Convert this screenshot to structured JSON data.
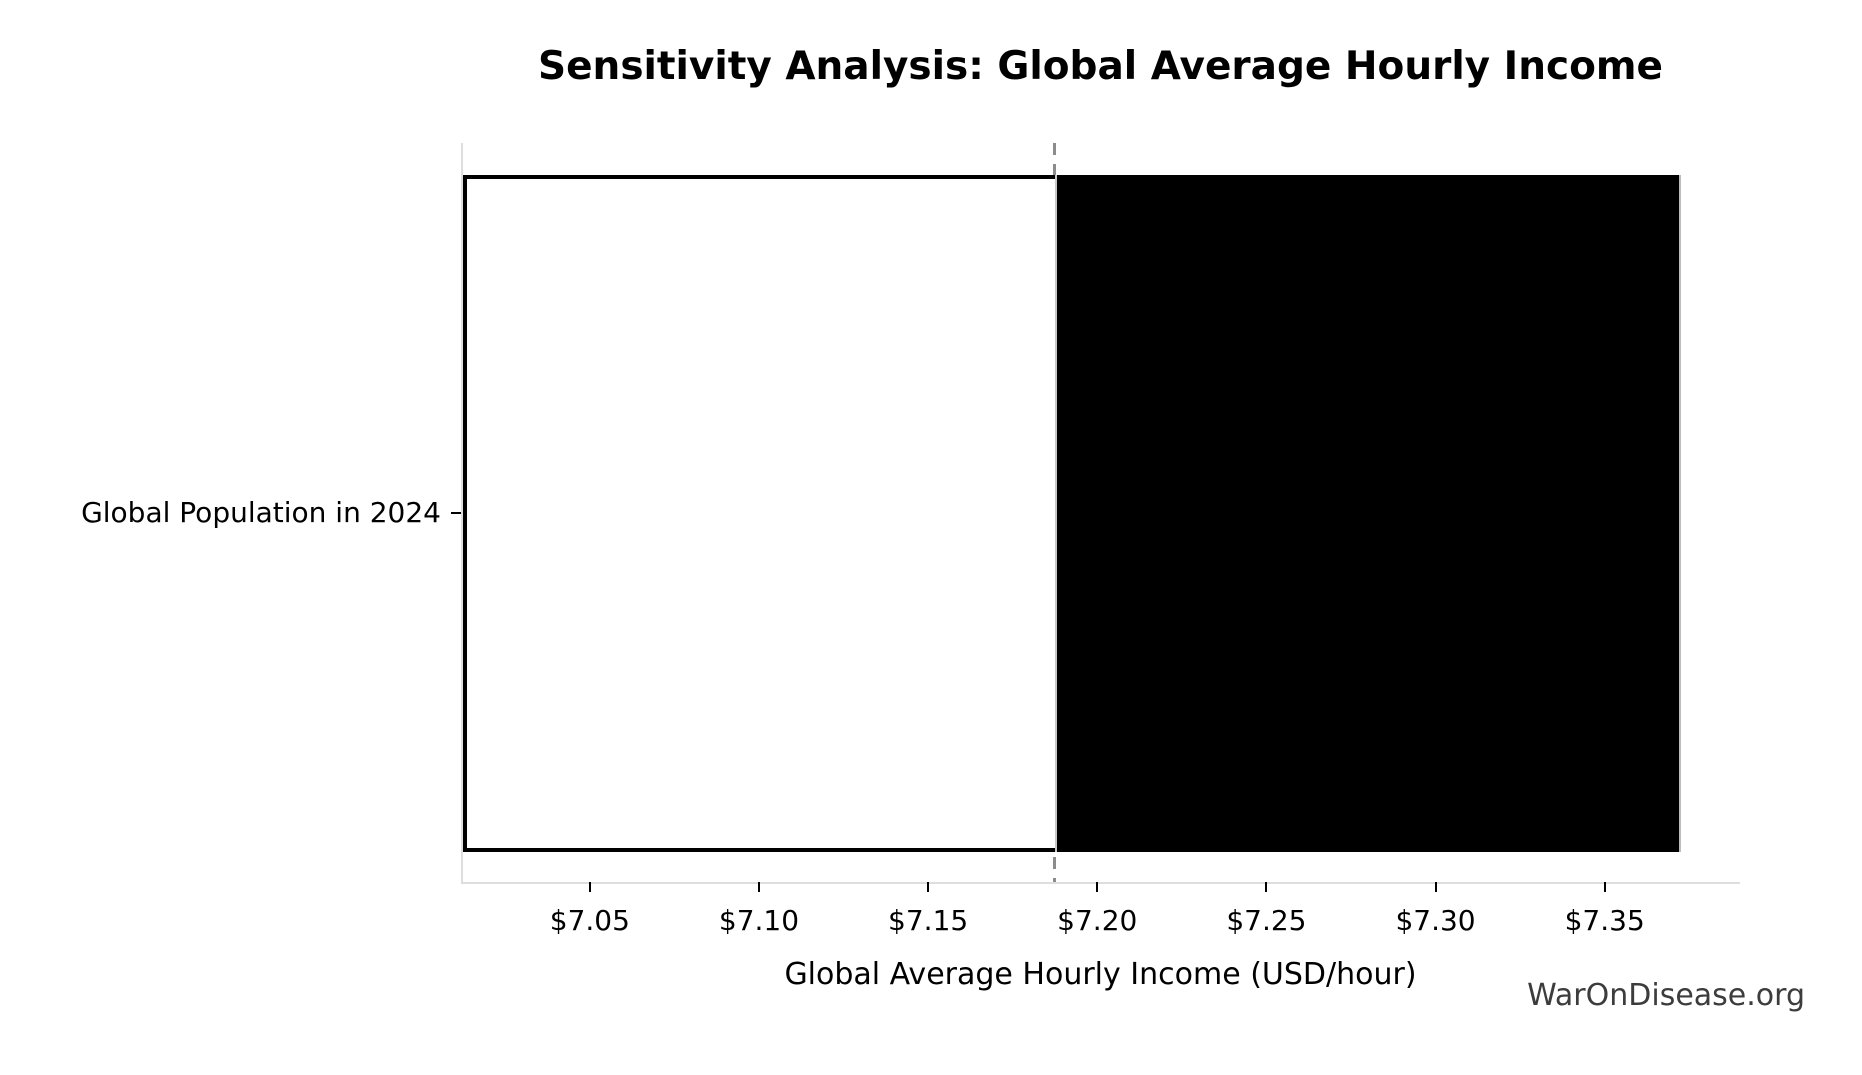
{
  "page": {
    "watermark": "WarOnDisease.org"
  },
  "chart_data": {
    "type": "bar",
    "orientation": "horizontal",
    "title": "Sensitivity Analysis: Global Average Hourly Income",
    "xlabel": "Global Average Hourly Income (USD/hour)",
    "ylabel": "",
    "categories": [
      "Global Population in 2024"
    ],
    "series": [
      {
        "name": "low-side (below baseline)",
        "fill": "#ffffff",
        "edge": "#000000",
        "from": 7.0125,
        "to": 7.1875
      },
      {
        "name": "high-side (above baseline)",
        "fill": "#000000",
        "edge": "#000000",
        "from": 7.1875,
        "to": 7.3725
      }
    ],
    "baseline": {
      "value": 7.1875,
      "style": "dashed",
      "color": "#8c8c8c"
    },
    "low": 7.0125,
    "high": 7.3725,
    "xlim": [
      7.0125,
      7.39
    ],
    "xticks": {
      "values": [
        7.05,
        7.1,
        7.15,
        7.2,
        7.25,
        7.3,
        7.35
      ],
      "labels": [
        "$7.05",
        "$7.10",
        "$7.15",
        "$7.20",
        "$7.25",
        "$7.30",
        "$7.35"
      ]
    },
    "grid": false,
    "legend": null,
    "colors": {
      "spine": "#dedede",
      "tick": "#000000",
      "text": "#000000",
      "watermark": "#3c3c3c"
    }
  }
}
